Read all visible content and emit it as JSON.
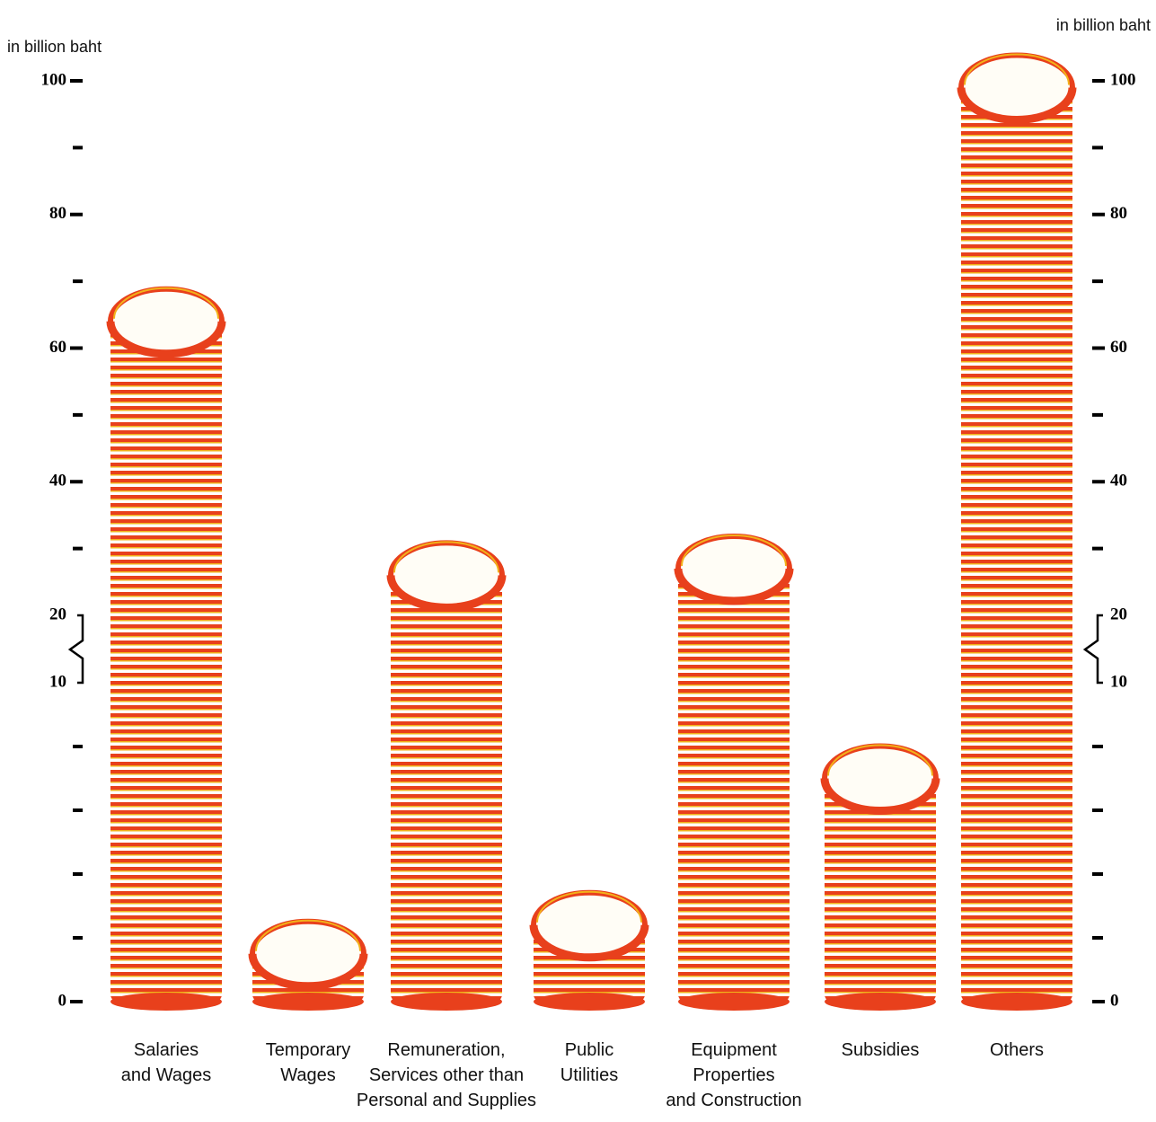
{
  "chart_data": {
    "type": "coin-stack",
    "ylabel": "in billion baht",
    "y2label": "in billion baht",
    "categories": [
      "Salaries\nand Wages",
      "Temporary\nWages",
      "Remuneration,\nServices other than\nPersonal and Supplies",
      "Public\nUtilities",
      "Equipment\nProperties\nand Construction",
      "Subsidies",
      "Others"
    ],
    "values": [
      64,
      1.5,
      26,
      2.4,
      27,
      7,
      99
    ],
    "color": "#e8401c",
    "edge_color": "#f2b21a",
    "ylim": [
      0,
      100
    ],
    "axis_break": [
      10,
      20
    ],
    "yticks": [
      0,
      10,
      20,
      40,
      60,
      80,
      100
    ],
    "minor_yticks": [
      2,
      4,
      6,
      8,
      30,
      50,
      70,
      90
    ],
    "y2lim": [
      0,
      100
    ],
    "y2ticks": [
      0,
      10,
      20,
      40,
      60,
      80,
      100
    ],
    "minor_y2ticks": [
      2,
      4,
      6,
      8,
      30,
      50,
      70,
      90
    ]
  }
}
